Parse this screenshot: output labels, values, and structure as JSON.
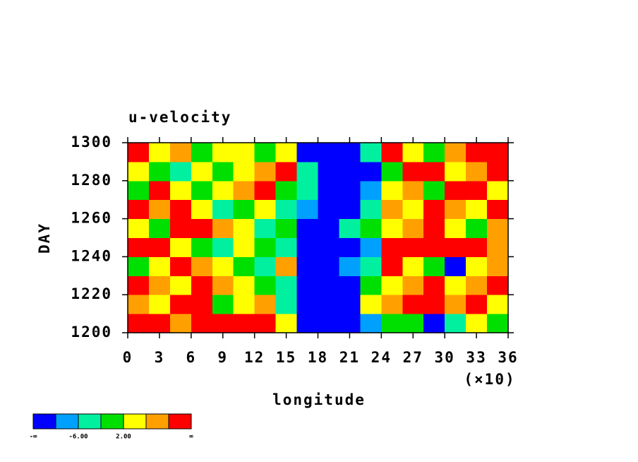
{
  "chart_data": {
    "type": "heatmap",
    "title": "u-velocity",
    "x_label": "longitude",
    "x_multiplier": "(×10)",
    "y_label": "DAY",
    "xlim": [
      0,
      360
    ],
    "ylim": [
      1200,
      1300
    ],
    "xticks": [
      {
        "value": 0,
        "label": "0"
      },
      {
        "value": 30,
        "label": "3"
      },
      {
        "value": 60,
        "label": "6"
      },
      {
        "value": 90,
        "label": "9"
      },
      {
        "value": 120,
        "label": "12"
      },
      {
        "value": 150,
        "label": "15"
      },
      {
        "value": 180,
        "label": "18"
      },
      {
        "value": 210,
        "label": "21"
      },
      {
        "value": 240,
        "label": "24"
      },
      {
        "value": 270,
        "label": "27"
      },
      {
        "value": 300,
        "label": "30"
      },
      {
        "value": 330,
        "label": "33"
      },
      {
        "value": 360,
        "label": "36"
      }
    ],
    "yticks": [
      1200,
      1220,
      1240,
      1260,
      1280,
      1300
    ],
    "x": [
      10,
      30,
      50,
      70,
      90,
      110,
      130,
      150,
      170,
      190,
      210,
      230,
      250,
      270,
      290,
      310,
      330,
      350
    ],
    "y": [
      1205,
      1215,
      1225,
      1235,
      1245,
      1255,
      1265,
      1275,
      1285,
      1295
    ],
    "z": [
      [
        12,
        11,
        8,
        12,
        12,
        12,
        13,
        4,
        -12,
        -12,
        -12,
        -8,
        0,
        -2,
        -12,
        -4,
        4,
        0
      ],
      [
        8,
        4,
        12,
        10,
        0,
        4,
        8,
        -4,
        -12,
        -12,
        -12,
        4,
        8,
        12,
        12,
        8,
        12,
        4
      ],
      [
        12,
        8,
        4,
        12,
        8,
        4,
        0,
        -4,
        -12,
        -12,
        -12,
        0,
        4,
        8,
        12,
        4,
        8,
        12
      ],
      [
        0,
        4,
        12,
        8,
        4,
        0,
        -4,
        8,
        -12,
        -12,
        -8,
        -4,
        12,
        4,
        0,
        -12,
        4,
        8
      ],
      [
        12,
        12,
        4,
        0,
        -4,
        4,
        0,
        -4,
        -12,
        -12,
        -12,
        -8,
        12,
        12,
        12,
        12,
        12,
        8
      ],
      [
        4,
        0,
        12,
        12,
        8,
        4,
        -4,
        0,
        -12,
        -12,
        -4,
        0,
        4,
        8,
        12,
        4,
        0,
        8
      ],
      [
        12,
        8,
        12,
        4,
        -4,
        0,
        4,
        -4,
        -8,
        -12,
        -12,
        -4,
        8,
        4,
        12,
        8,
        4,
        12
      ],
      [
        0,
        12,
        4,
        0,
        4,
        8,
        12,
        0,
        -4,
        -12,
        -12,
        -8,
        4,
        8,
        0,
        12,
        12,
        4
      ],
      [
        4,
        0,
        -4,
        4,
        0,
        4,
        8,
        12,
        -4,
        -12,
        -12,
        -12,
        0,
        12,
        12,
        4,
        8,
        12
      ],
      [
        12,
        4,
        8,
        0,
        4,
        4,
        0,
        4,
        -12,
        -12,
        -12,
        -4,
        12,
        4,
        0,
        8,
        12,
        12
      ]
    ],
    "levels": [
      -10,
      -6,
      -2,
      2,
      6,
      10
    ],
    "colors": [
      "#0000ff",
      "#00a0ff",
      "#00f0a0",
      "#00e000",
      "#ffff00",
      "#ffa000",
      "#ff0000"
    ],
    "colorbar_labels": [
      {
        "index": 0,
        "label": "-∞"
      },
      {
        "index": 2,
        "label": "-6.00"
      },
      {
        "index": 4,
        "label": "2.00"
      },
      {
        "index": 7,
        "label": "∞"
      }
    ]
  }
}
